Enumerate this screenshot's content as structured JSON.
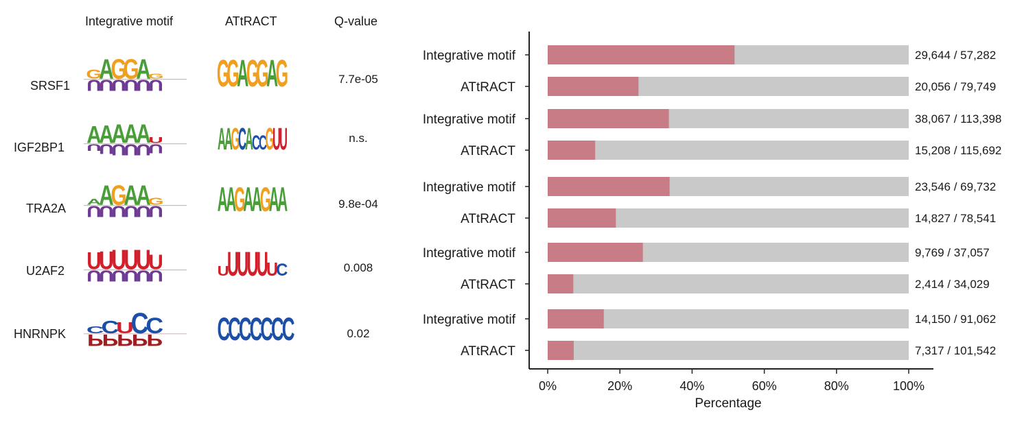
{
  "headers": {
    "integrative": "Integrative motif",
    "attract": "ATtRACT",
    "qvalue": "Q-value"
  },
  "rows": [
    {
      "rbp": "SRSF1",
      "qvalue": "7.7e-05",
      "integrative_logo": {
        "top": {
          "text": "GAGGAG",
          "colors": [
            "#f0a020",
            "#4a9e3a",
            "#f0a020",
            "#f0a020",
            "#4a9e3a",
            "#f0a020"
          ],
          "heights": [
            0.45,
            1,
            1,
            1,
            1,
            0.25
          ]
        },
        "bottom": {
          "text": "UUUUUU",
          "colors": [
            "#6e3a92",
            "#6e3a92",
            "#6e3a92",
            "#6e3a92",
            "#6e3a92",
            "#6e3a92"
          ],
          "heights": [
            1,
            1,
            1,
            1,
            1,
            1
          ]
        }
      },
      "attract_logo": {
        "text": "GGAGGAG",
        "colors": [
          "#f0a020",
          "#f0a020",
          "#4a9e3a",
          "#f0a020",
          "#f0a020",
          "#4a9e3a",
          "#f0a020"
        ],
        "heights": [
          1,
          1,
          1,
          1,
          1,
          1,
          1
        ]
      }
    },
    {
      "rbp": "IGF2BP1",
      "qvalue": "n.s.",
      "integrative_logo": {
        "top": {
          "text": "AAAAAU",
          "colors": [
            "#4a9e3a",
            "#4a9e3a",
            "#4a9e3a",
            "#4a9e3a",
            "#4a9e3a",
            "#d11f2b"
          ],
          "heights": [
            0.85,
            0.9,
            0.95,
            0.95,
            0.95,
            0.3
          ]
        },
        "bottom": {
          "text": "UUUUUU",
          "colors": [
            "#6e3a92",
            "#6e3a92",
            "#6e3a92",
            "#6e3a92",
            "#6e3a92",
            "#6e3a92"
          ],
          "heights": [
            0.6,
            0.9,
            1,
            1,
            1,
            0.8
          ]
        }
      },
      "attract_logo": {
        "text": "AAGCACCGUU",
        "colors": [
          "#4a9e3a",
          "#4a9e3a",
          "#f0a020",
          "#1c50a8",
          "#4a9e3a",
          "#1c50a8",
          "#1c50a8",
          "#f0a020",
          "#d11f2b",
          "#d11f2b"
        ],
        "heights": [
          0.9,
          0.9,
          0.9,
          0.9,
          0.9,
          0.6,
          0.6,
          0.9,
          0.9,
          0.9
        ]
      }
    },
    {
      "rbp": "TRA2A",
      "qvalue": "9.8e-04",
      "integrative_logo": {
        "top": {
          "text": "AAGAAG",
          "colors": [
            "#4a9e3a",
            "#4a9e3a",
            "#f0a020",
            "#4a9e3a",
            "#4a9e3a",
            "#f0a020"
          ],
          "heights": [
            0.3,
            1,
            1,
            1,
            1,
            0.35
          ]
        },
        "bottom": {
          "text": "UUUUUU",
          "colors": [
            "#6e3a92",
            "#6e3a92",
            "#6e3a92",
            "#6e3a92",
            "#6e3a92",
            "#6e3a92"
          ],
          "heights": [
            1,
            1,
            1,
            1,
            1,
            1
          ]
        }
      },
      "attract_logo": {
        "text": "AAGAAGAA",
        "colors": [
          "#4a9e3a",
          "#4a9e3a",
          "#f0a020",
          "#4a9e3a",
          "#4a9e3a",
          "#f0a020",
          "#4a9e3a",
          "#4a9e3a"
        ],
        "heights": [
          1,
          1,
          1,
          1,
          1,
          1,
          1,
          1
        ]
      }
    },
    {
      "rbp": "U2AF2",
      "qvalue": "0.008",
      "integrative_logo": {
        "top": {
          "text": "UUUUUU",
          "colors": [
            "#d11f2b",
            "#d11f2b",
            "#d11f2b",
            "#d11f2b",
            "#d11f2b",
            "#d11f2b"
          ],
          "heights": [
            0.85,
            0.9,
            1,
            1,
            1,
            0.75
          ]
        },
        "bottom": {
          "text": "UUUUUU",
          "colors": [
            "#6e3a92",
            "#6e3a92",
            "#6e3a92",
            "#6e3a92",
            "#6e3a92",
            "#6e3a92"
          ],
          "heights": [
            1,
            1,
            1,
            1,
            1,
            1
          ]
        }
      },
      "attract_logo": {
        "text": "UUUUUUC",
        "colors": [
          "#d11f2b",
          "#d11f2b",
          "#d11f2b",
          "#d11f2b",
          "#d11f2b",
          "#d11f2b",
          "#1c50a8"
        ],
        "heights": [
          0.4,
          1,
          1,
          1,
          1,
          0.55,
          0.5
        ]
      }
    },
    {
      "rbp": "HNRNPK",
      "qvalue": "0.02",
      "integrative_logo": {
        "top": {
          "text": "CCUCC",
          "colors": [
            "#1c50a8",
            "#1c50a8",
            "#d11f2b",
            "#1c50a8",
            "#1c50a8"
          ],
          "heights": [
            0.35,
            0.6,
            0.55,
            1,
            0.75
          ]
        },
        "bottom": {
          "text": "PPPPP",
          "colors": [
            "#a01e22",
            "#a01e22",
            "#a01e22",
            "#a01e22",
            "#a01e22"
          ],
          "heights": [
            1,
            1,
            1,
            1,
            1
          ]
        }
      },
      "attract_logo": {
        "text": "CCCCCCC",
        "colors": [
          "#1c50a8",
          "#1c50a8",
          "#1c50a8",
          "#1c50a8",
          "#1c50a8",
          "#1c50a8",
          "#1c50a8"
        ],
        "heights": [
          1,
          1,
          1,
          1,
          1,
          1,
          1
        ]
      }
    }
  ],
  "chart_data": {
    "type": "bar",
    "orientation": "horizontal",
    "stacked": true,
    "xlabel": "Percentage",
    "xlim": [
      0,
      100
    ],
    "xticks": [
      "0%",
      "20%",
      "40%",
      "60%",
      "80%",
      "100%"
    ],
    "colors": {
      "hit": "#c77c86",
      "rest": "#c9c9c9"
    },
    "groups": [
      {
        "bars": [
          {
            "label": "Integrative motif",
            "hits": 29644,
            "total": 57282,
            "text": "29,644 / 57,282"
          },
          {
            "label": "ATtRACT",
            "hits": 20056,
            "total": 79749,
            "text": "20,056 / 79,749"
          }
        ]
      },
      {
        "bars": [
          {
            "label": "Integrative motif",
            "hits": 38067,
            "total": 113398,
            "text": "38,067 / 113,398"
          },
          {
            "label": "ATtRACT",
            "hits": 15208,
            "total": 115692,
            "text": "15,208 / 115,692"
          }
        ]
      },
      {
        "bars": [
          {
            "label": "Integrative motif",
            "hits": 23546,
            "total": 69732,
            "text": "23,546 / 69,732"
          },
          {
            "label": "ATtRACT",
            "hits": 14827,
            "total": 78541,
            "text": "14,827 / 78,541"
          }
        ]
      },
      {
        "bars": [
          {
            "label": "Integrative motif",
            "hits": 9769,
            "total": 37057,
            "text": "9,769 / 37,057"
          },
          {
            "label": "ATtRACT",
            "hits": 2414,
            "total": 34029,
            "text": "2,414 / 34,029"
          }
        ]
      },
      {
        "bars": [
          {
            "label": "Integrative motif",
            "hits": 14150,
            "total": 91062,
            "text": "14,150 / 91,062"
          },
          {
            "label": "ATtRACT",
            "hits": 7317,
            "total": 101542,
            "text": "7,317 / 101,542"
          }
        ]
      }
    ]
  }
}
